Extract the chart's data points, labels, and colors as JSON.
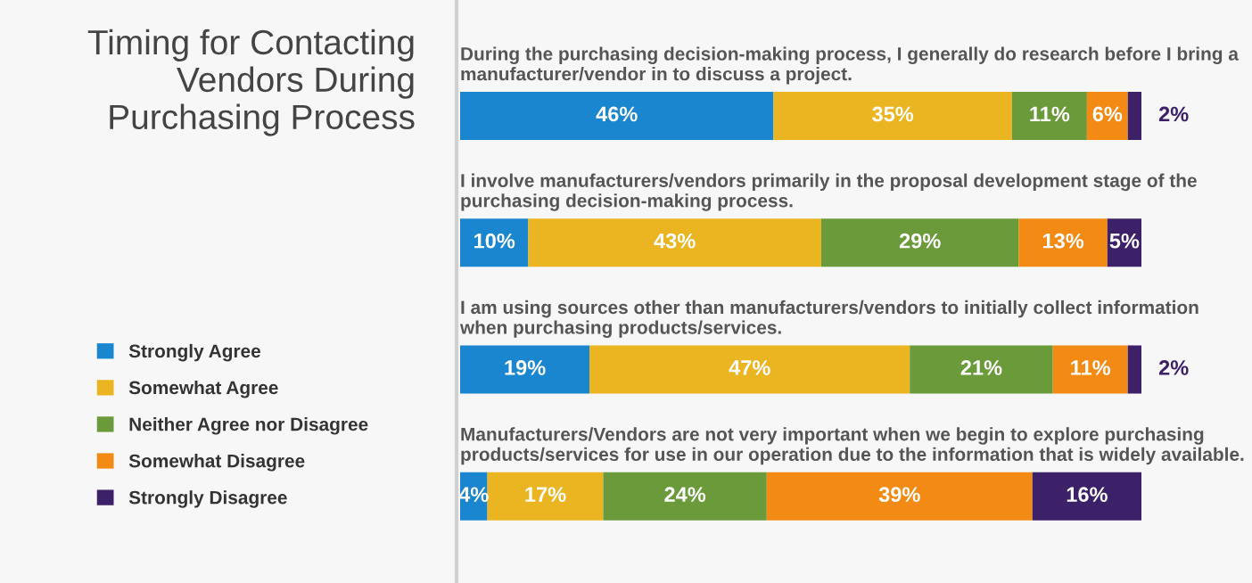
{
  "chart_data": {
    "type": "bar",
    "orientation": "horizontal",
    "stacked": true,
    "title": "Timing for Contacting Vendors During Purchasing Process",
    "categories": [
      "During the purchasing decision-making process, I generally do research before I bring a manufacturer/vendor in to discuss a project.",
      "I involve manufacturers/vendors primarily in the proposal development stage of the purchasing decision-making process.",
      "I am using sources other than manufacturers/vendors to initially collect information when purchasing products/services.",
      "Manufacturers/Vendors are not very important when we begin to explore purchasing products/services for use in our operation due to the information that is widely available."
    ],
    "series": [
      {
        "name": "Strongly Agree",
        "color": "#1a86cf",
        "values": [
          46,
          10,
          19,
          4
        ],
        "value_labels": [
          "46%",
          "10%",
          "19%",
          "4%"
        ]
      },
      {
        "name": "Somewhat Agree",
        "color": "#eab520",
        "values": [
          35,
          43,
          47,
          17
        ],
        "value_labels": [
          "35%",
          "43%",
          "47%",
          "17%"
        ]
      },
      {
        "name": "Neither Agree nor Disagree",
        "color": "#6a9a3a",
        "values": [
          11,
          29,
          21,
          24
        ],
        "value_labels": [
          "11%",
          "29%",
          "21%",
          "24%"
        ]
      },
      {
        "name": "Somewhat Disagree",
        "color": "#f38a14",
        "values": [
          6,
          13,
          11,
          39
        ],
        "value_labels": [
          "6%",
          "13%",
          "11%",
          "39%"
        ]
      },
      {
        "name": "Strongly Disagree",
        "color": "#3c2169",
        "values": [
          2,
          5,
          2,
          16
        ],
        "value_labels": [
          "2%",
          "5%",
          "2%",
          "16%"
        ]
      }
    ],
    "legend": "left"
  }
}
